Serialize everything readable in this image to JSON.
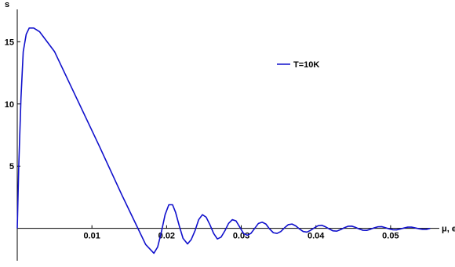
{
  "chart_data": {
    "type": "line",
    "title": "",
    "xlabel": "μ, eV",
    "ylabel": "s",
    "xlim": [
      0,
      0.056
    ],
    "ylim": [
      -2.6,
      17.6
    ],
    "x_ticks": [
      0.01,
      0.02,
      0.03,
      0.04,
      0.05
    ],
    "x_tick_labels": [
      "0.01",
      "0.02",
      "0.03",
      "0.04",
      "0.05"
    ],
    "y_ticks": [
      5,
      10,
      15
    ],
    "y_tick_labels": [
      "5",
      "10",
      "15"
    ],
    "grid": false,
    "legend_position": "top-right",
    "series": [
      {
        "name": "T=10K",
        "color": "#1010cc",
        "x": [
          0.0,
          0.0002,
          0.0005,
          0.0008,
          0.0012,
          0.0016,
          0.0022,
          0.003,
          0.005,
          0.008,
          0.011,
          0.014,
          0.016,
          0.0172,
          0.0183,
          0.0188,
          0.0193,
          0.0198,
          0.0203,
          0.0208,
          0.0212,
          0.0217,
          0.0222,
          0.0228,
          0.0233,
          0.0238,
          0.0243,
          0.0248,
          0.0253,
          0.0258,
          0.0263,
          0.0268,
          0.0273,
          0.0278,
          0.0283,
          0.0288,
          0.0293,
          0.0298,
          0.0303,
          0.0308,
          0.0313,
          0.0318,
          0.0323,
          0.0328,
          0.0333,
          0.0338,
          0.0343,
          0.0348,
          0.0353,
          0.0358,
          0.0363,
          0.0368,
          0.0373,
          0.0378,
          0.0383,
          0.0388,
          0.0393,
          0.0398,
          0.0403,
          0.0408,
          0.0413,
          0.0418,
          0.0423,
          0.0428,
          0.0433,
          0.0438,
          0.0443,
          0.0448,
          0.0453,
          0.0458,
          0.0463,
          0.0468,
          0.0473,
          0.0478,
          0.0483,
          0.0488,
          0.0493,
          0.0498,
          0.0503,
          0.0508,
          0.0513,
          0.0518,
          0.0523,
          0.0528,
          0.0533,
          0.0538,
          0.0543,
          0.0548,
          0.0553
        ],
        "values": [
          0.0,
          5.0,
          10.5,
          14.2,
          15.6,
          16.1,
          16.1,
          15.8,
          14.2,
          10.4,
          6.6,
          2.7,
          0.2,
          -1.3,
          -2.0,
          -1.5,
          -0.3,
          1.1,
          1.9,
          1.9,
          1.3,
          0.2,
          -0.8,
          -1.25,
          -0.9,
          -0.2,
          0.7,
          1.1,
          0.9,
          0.3,
          -0.4,
          -0.85,
          -0.7,
          -0.2,
          0.4,
          0.7,
          0.6,
          0.1,
          -0.4,
          -0.55,
          -0.4,
          0.0,
          0.4,
          0.5,
          0.35,
          -0.05,
          -0.35,
          -0.4,
          -0.25,
          0.05,
          0.3,
          0.35,
          0.2,
          -0.05,
          -0.25,
          -0.3,
          -0.15,
          0.05,
          0.22,
          0.25,
          0.12,
          -0.05,
          -0.2,
          -0.22,
          -0.1,
          0.05,
          0.17,
          0.18,
          0.08,
          -0.05,
          -0.15,
          -0.16,
          -0.07,
          0.04,
          0.13,
          0.14,
          0.06,
          -0.04,
          -0.11,
          -0.12,
          -0.05,
          0.03,
          0.1,
          0.1,
          0.04,
          -0.03,
          -0.08,
          -0.08,
          0.0
        ]
      }
    ]
  }
}
